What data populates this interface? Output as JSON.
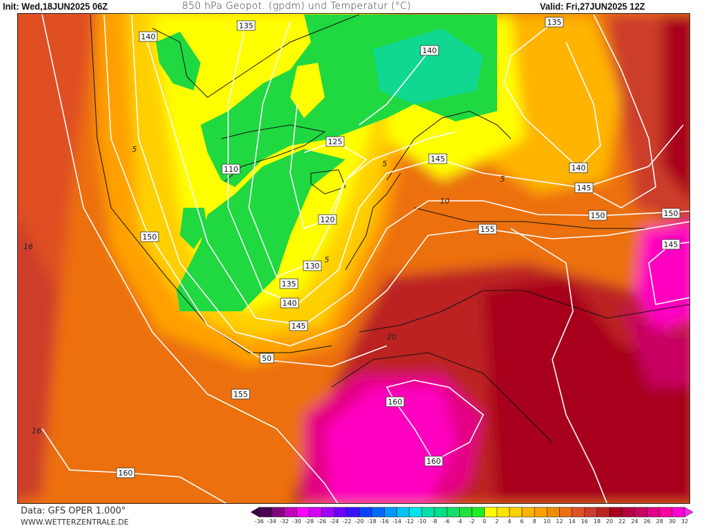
{
  "header": {
    "init": "Init: Wed,18JUN2025 06Z",
    "title": "850 hPa Geopot. (gpdm) und Temperatur (°C)",
    "valid": "Valid: Fri,27JUN2025 12Z"
  },
  "footer": {
    "data_source": "Data: GFS OPER 1.000°",
    "website": "WWW.WETTERZENTRALE.DE"
  },
  "colorbar": {
    "unit": "°C",
    "ticks": [
      -36,
      -34,
      -32,
      -30,
      -28,
      -26,
      -24,
      -22,
      -20,
      -18,
      -16,
      -14,
      -12,
      -10,
      -8,
      -6,
      -4,
      -2,
      0,
      2,
      4,
      6,
      8,
      10,
      12,
      14,
      16,
      18,
      20,
      22,
      24,
      26,
      28,
      30,
      32
    ],
    "colors": [
      "#4a0050",
      "#80007e",
      "#c000b8",
      "#ff00ff",
      "#d400f4",
      "#a000ff",
      "#6a00ff",
      "#3a10ff",
      "#0a40ff",
      "#0068ff",
      "#0098ff",
      "#00c4f4",
      "#00e4ec",
      "#00e0a8",
      "#00e088",
      "#10e068",
      "#20e040",
      "#20f020",
      "#ffff00",
      "#ffe400",
      "#ffd000",
      "#ffb400",
      "#ffa000",
      "#f08c00",
      "#ec7010",
      "#e05024",
      "#cc3c2c",
      "#bc2424",
      "#a8001c",
      "#b40040",
      "#c80060",
      "#e40084",
      "#ff00a0",
      "#ff00d0"
    ],
    "below_color": "#3a0040",
    "above_color": "#ff20ff"
  },
  "map": {
    "geopotential_labels": [
      "140",
      "135",
      "140",
      "135",
      "125",
      "110",
      "145",
      "140",
      "145",
      "150",
      "150",
      "145",
      "120",
      "150",
      "155",
      "130",
      "135",
      "140",
      "145",
      "50",
      "155",
      "160",
      "160",
      "160"
    ],
    "isotherm_labels": [
      "16",
      "16",
      "5",
      "5",
      "5",
      "5",
      "20",
      "10"
    ]
  }
}
